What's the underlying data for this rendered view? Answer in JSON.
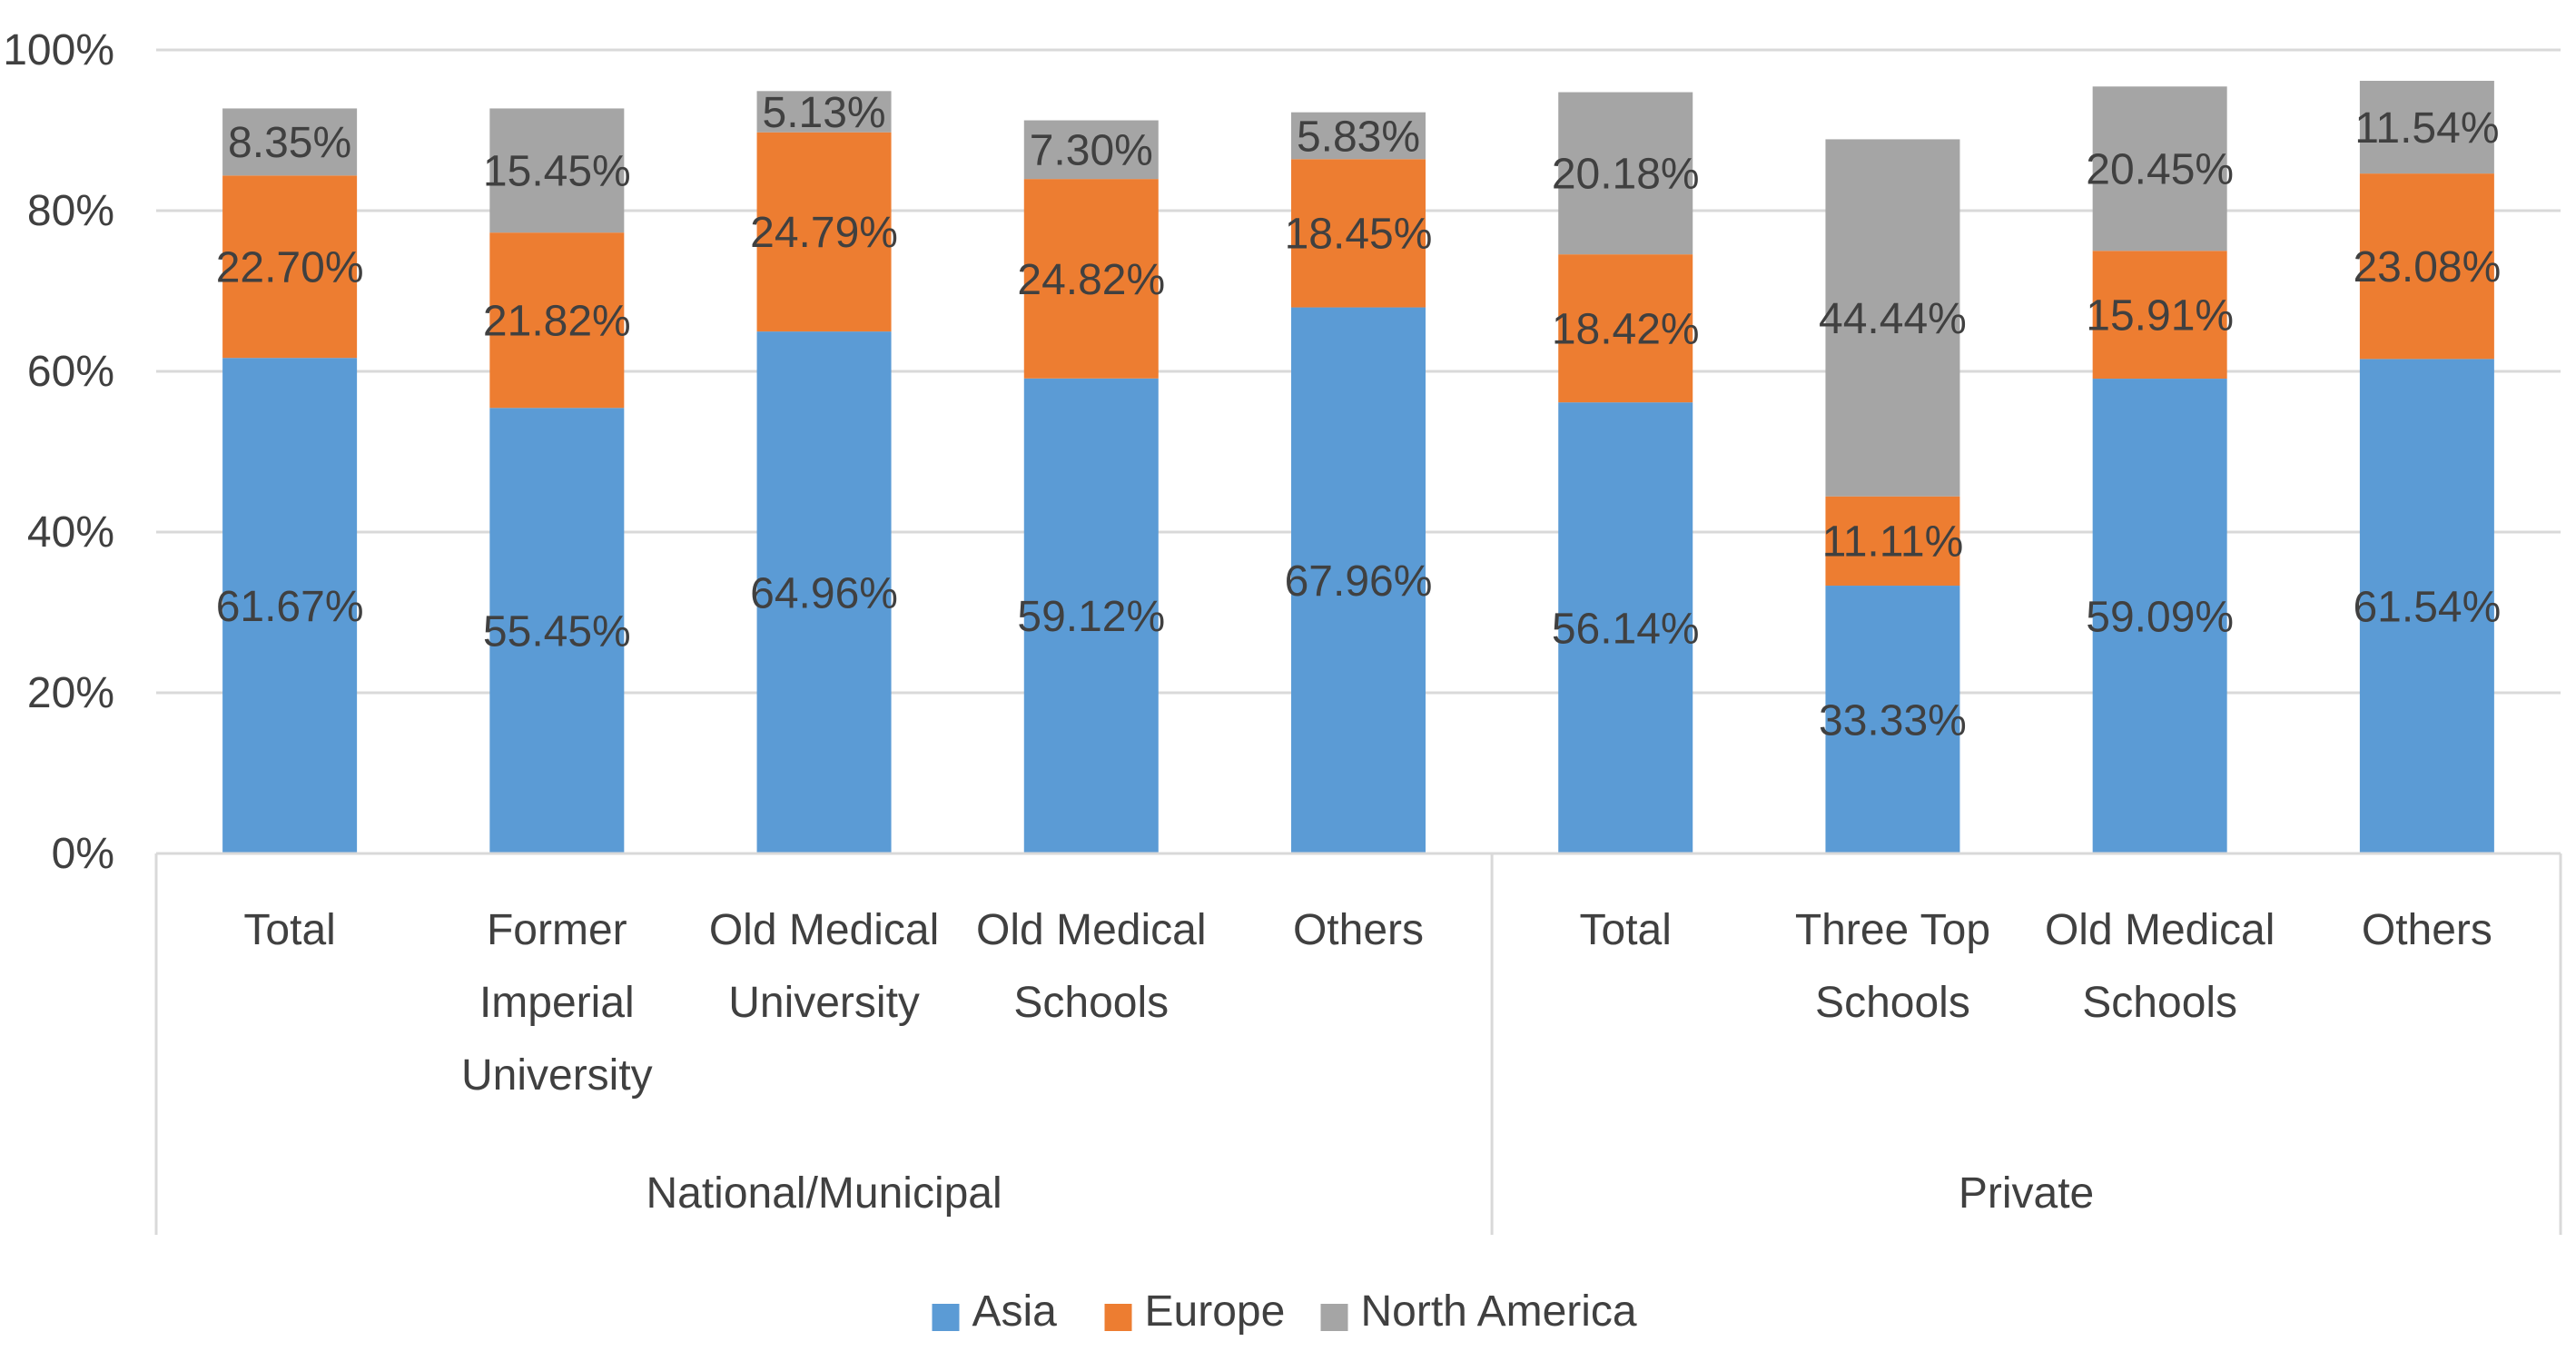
{
  "chart_data": {
    "type": "bar",
    "stacked": true,
    "ytick_labels": [
      "0%",
      "20%",
      "40%",
      "60%",
      "80%",
      "100%"
    ],
    "ylim": [
      0,
      100
    ],
    "grid": true,
    "legend_position": "bottom",
    "categories": [
      {
        "group": "National/Municipal",
        "lines": [
          "Total"
        ]
      },
      {
        "group": "National/Municipal",
        "lines": [
          "Former",
          "Imperial",
          "University"
        ]
      },
      {
        "group": "National/Municipal",
        "lines": [
          "Old Medical",
          "University"
        ]
      },
      {
        "group": "National/Municipal",
        "lines": [
          "Old Medical",
          "Schools"
        ]
      },
      {
        "group": "National/Municipal",
        "lines": [
          "Others"
        ]
      },
      {
        "group": "Private",
        "lines": [
          "Total"
        ]
      },
      {
        "group": "Private",
        "lines": [
          "Three Top",
          "Schools"
        ]
      },
      {
        "group": "Private",
        "lines": [
          "Old Medical",
          "Schools"
        ]
      },
      {
        "group": "Private",
        "lines": [
          "Others"
        ]
      }
    ],
    "groups": [
      {
        "name": "National/Municipal",
        "count": 5
      },
      {
        "name": "Private",
        "count": 4
      }
    ],
    "series": [
      {
        "name": "Asia",
        "color": "#5B9BD5",
        "values": [
          61.67,
          55.45,
          64.96,
          59.12,
          67.96,
          56.14,
          33.33,
          59.09,
          61.54
        ],
        "labels": [
          "61.67%",
          "55.45%",
          "64.96%",
          "59.12%",
          "67.96%",
          "56.14%",
          "33.33%",
          "59.09%",
          "61.54%"
        ]
      },
      {
        "name": "Europe",
        "color": "#ED7D31",
        "values": [
          22.7,
          21.82,
          24.79,
          24.82,
          18.45,
          18.42,
          11.11,
          15.91,
          23.08
        ],
        "labels": [
          "22.70%",
          "21.82%",
          "24.79%",
          "24.82%",
          "18.45%",
          "18.42%",
          "11.11%",
          "15.91%",
          "23.08%"
        ]
      },
      {
        "name": "North America",
        "color": "#A5A5A5",
        "values": [
          8.35,
          15.45,
          5.13,
          7.3,
          5.83,
          20.18,
          44.44,
          20.45,
          11.54
        ],
        "labels": [
          "8.35%",
          "15.45%",
          "5.13%",
          "7.30%",
          "5.83%",
          "20.18%",
          "44.44%",
          "20.45%",
          "11.54%"
        ]
      }
    ]
  }
}
